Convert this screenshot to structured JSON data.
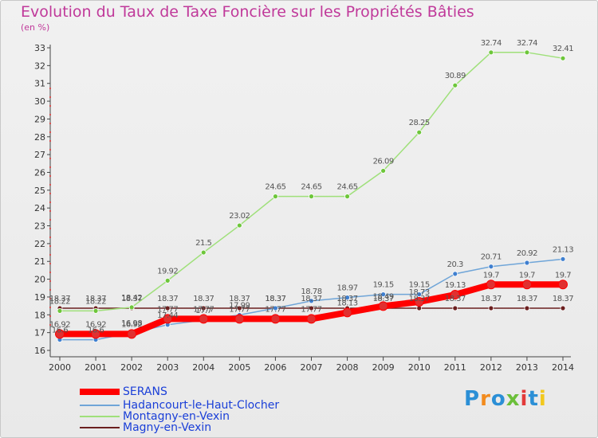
{
  "title": "Evolution du Taux de Taxe Foncière sur les Propriétés Bâties",
  "subtitle": "(en %)",
  "brand": {
    "text": "Proxiti",
    "colors": [
      "#2b8fd6",
      "#f28b1e",
      "#2b8fd6",
      "#6bbf3a",
      "#e23a3a",
      "#2b8fd6",
      "#f2c81e"
    ]
  },
  "legend": [
    {
      "label": "SERANS",
      "color": "#ff0000",
      "thickness": 8
    },
    {
      "label": "Hadancourt-le-Haut-Clocher",
      "color": "#6fa5d8",
      "thickness": 2
    },
    {
      "label": "Montagny-en-Vexin",
      "color": "#9fe07a",
      "thickness": 2
    },
    {
      "label": "Magny-en-Vexin",
      "color": "#6b1f1f",
      "thickness": 2
    }
  ],
  "chart_data": {
    "type": "line",
    "x": [
      "2000",
      "2001",
      "2002",
      "2003",
      "2004",
      "2005",
      "2006",
      "2007",
      "2008",
      "2009",
      "2010",
      "2011",
      "2012",
      "2013",
      "2014"
    ],
    "ylim": [
      16,
      33
    ],
    "yticks": [
      "16",
      "17",
      "18",
      "19",
      "20",
      "21",
      "22",
      "23",
      "24",
      "25",
      "26",
      "27",
      "28",
      "29",
      "30",
      "31",
      "32",
      "33"
    ],
    "grid": false,
    "series": [
      {
        "name": "SERANS",
        "color": "#ff0000",
        "marker": "#e03030",
        "values": [
          16.92,
          16.92,
          16.92,
          17.77,
          17.77,
          17.77,
          17.77,
          17.77,
          18.13,
          18.49,
          18.73,
          19.13,
          19.7,
          19.7,
          19.7
        ],
        "labels": [
          "16.92",
          "16.92",
          "16.92",
          "17.77",
          "17.77",
          "17.77",
          "17.77",
          "17.77",
          "18.13",
          "18.49",
          "18.73",
          "19.13",
          "19.7",
          "19.7",
          "19.7"
        ]
      },
      {
        "name": "Hadancourt-le-Haut-Clocher",
        "color": "#6fa5d8",
        "marker": "#3f7fcf",
        "values": [
          16.6,
          16.6,
          16.98,
          17.44,
          17.7,
          17.99,
          18.37,
          18.78,
          18.97,
          19.15,
          19.15,
          20.3,
          20.71,
          20.92,
          21.13
        ],
        "labels": [
          "16.6",
          "16.6",
          "16.98",
          "17.44",
          "17.7",
          "17.99",
          "18.37",
          "18.78",
          "18.97",
          "19.15",
          "19.15",
          "20.3",
          "20.71",
          "20.92",
          "21.13"
        ]
      },
      {
        "name": "Montagny-en-Vexin",
        "color": "#9fe07a",
        "marker": "#6dc63a",
        "values": [
          18.22,
          18.22,
          18.42,
          19.92,
          21.5,
          23.02,
          24.65,
          24.65,
          24.65,
          26.09,
          28.25,
          30.89,
          32.74,
          32.74,
          32.41
        ],
        "labels": [
          "18.22",
          "18.22",
          "18.42",
          "19.92",
          "21.5",
          "23.02",
          "24.65",
          "24.65",
          "24.65",
          "26.09",
          "28.25",
          "30.89",
          "32.74",
          "32.74",
          "32.41"
        ]
      },
      {
        "name": "Magny-en-Vexin",
        "color": "#6b1f1f",
        "marker": "#6b1f1f",
        "values": [
          18.37,
          18.37,
          18.37,
          18.37,
          18.37,
          18.37,
          18.37,
          18.37,
          18.37,
          18.37,
          18.37,
          18.37,
          18.37,
          18.37,
          18.37
        ],
        "labels": [
          "18.37",
          "18.37",
          "18.37",
          "18.37",
          "18.37",
          "18.37",
          "18.37",
          "18.37",
          "18.37",
          "18.37",
          "18.37",
          "18.37",
          "18.37",
          "18.37",
          "18.37"
        ]
      }
    ]
  }
}
